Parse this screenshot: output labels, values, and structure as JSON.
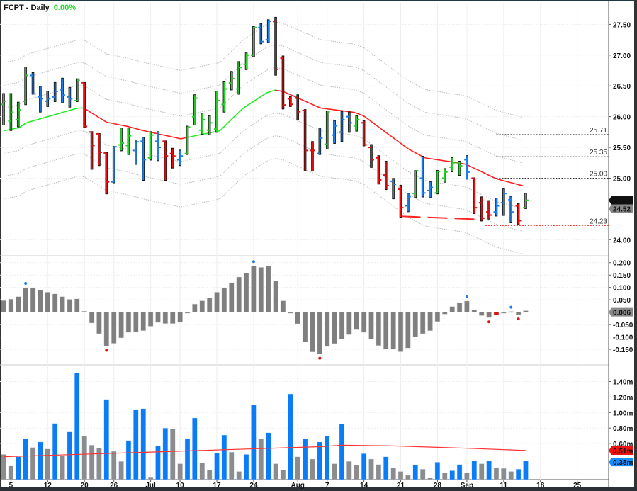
{
  "header": {
    "symbol_label": "FCPT - Daily",
    "change": "0.00%"
  },
  "colors": {
    "up": "#2ccc2c",
    "neutral": "#1f7fe6",
    "down": "#dd1111",
    "ma_up": "#22ee22",
    "ma_down": "#ff2222",
    "band": "#bbbbbb",
    "histogram": "#7f7f7f",
    "volume_up": "#0a7cf5",
    "volume_down": "#8c8c8c",
    "volume_ma": "#ff3333"
  },
  "price_panel": {
    "ylim": [
      23.75,
      27.85
    ],
    "ticks": [
      "27.50",
      "27.00",
      "26.50",
      "26.00",
      "25.50",
      "25.00",
      "24.00"
    ],
    "last_price_label": "24.64",
    "prev_price_label": "24.52",
    "levels": [
      {
        "value": 25.71,
        "label": "25.71",
        "color": "#333333",
        "from_bar": 67
      },
      {
        "value": 25.35,
        "label": "25.35",
        "color": "#333333",
        "from_bar": 67
      },
      {
        "value": 25.0,
        "label": "25.00",
        "color": "#333333",
        "from_bar": 67
      },
      {
        "value": 24.23,
        "label": "24.23",
        "color": "#ff2222",
        "from_bar": 65.5
      }
    ],
    "support_line": {
      "from": [
        54,
        24.38
      ],
      "to": [
        64.7,
        24.33
      ],
      "color": "#ff2222"
    },
    "band_offsets": [
      0.37,
      0.74,
      1.11
    ],
    "bars_fields": [
      "open",
      "high",
      "low",
      "close",
      "impulse"
    ],
    "bars": [
      [
        26.2,
        26.37,
        25.87,
        26.25,
        "G"
      ],
      [
        25.93,
        26.37,
        25.78,
        26.07,
        "G"
      ],
      [
        25.95,
        26.23,
        25.84,
        26.11,
        "G"
      ],
      [
        26.25,
        26.8,
        26.2,
        26.67,
        "G"
      ],
      [
        26.67,
        26.71,
        26.37,
        26.37,
        "B"
      ],
      [
        26.32,
        26.49,
        26.08,
        26.29,
        "B"
      ],
      [
        26.25,
        26.41,
        26.17,
        26.29,
        "B"
      ],
      [
        26.32,
        26.55,
        26.25,
        26.41,
        "B"
      ],
      [
        26.44,
        26.62,
        26.23,
        26.35,
        "B"
      ],
      [
        26.32,
        26.47,
        26.16,
        26.29,
        "B"
      ],
      [
        26.26,
        26.61,
        26.25,
        26.59,
        "G"
      ],
      [
        26.55,
        26.55,
        25.83,
        25.84,
        "R"
      ],
      [
        25.75,
        25.75,
        25.15,
        25.53,
        "R"
      ],
      [
        25.72,
        25.72,
        25.21,
        25.42,
        "R"
      ],
      [
        25.41,
        25.41,
        24.75,
        24.94,
        "R"
      ],
      [
        24.94,
        25.51,
        24.93,
        25.51,
        "B"
      ],
      [
        25.54,
        25.81,
        25.45,
        25.57,
        "G"
      ],
      [
        25.53,
        25.81,
        25.39,
        25.69,
        "G"
      ],
      [
        25.45,
        25.6,
        25.23,
        25.59,
        "B"
      ],
      [
        25.6,
        25.66,
        24.97,
        25.3,
        "B"
      ],
      [
        25.33,
        25.75,
        25.3,
        25.7,
        "G"
      ],
      [
        25.6,
        25.75,
        25.29,
        25.5,
        "B"
      ],
      [
        25.6,
        25.6,
        24.97,
        25.36,
        "R"
      ],
      [
        25.4,
        25.48,
        25.17,
        25.36,
        "R"
      ],
      [
        25.3,
        25.45,
        25.21,
        25.36,
        "B"
      ],
      [
        25.4,
        25.84,
        25.39,
        25.83,
        "G"
      ],
      [
        26.0,
        26.35,
        25.87,
        26.3,
        "G"
      ],
      [
        25.78,
        26.05,
        25.72,
        25.95,
        "G"
      ],
      [
        25.78,
        26.01,
        25.71,
        25.9,
        "G"
      ],
      [
        25.8,
        26.41,
        25.75,
        26.26,
        "G"
      ],
      [
        26.2,
        26.56,
        26.08,
        26.45,
        "G"
      ],
      [
        26.55,
        26.73,
        26.44,
        26.62,
        "G"
      ],
      [
        26.45,
        26.89,
        26.37,
        26.8,
        "G"
      ],
      [
        26.85,
        27.03,
        26.77,
        27.0,
        "G"
      ],
      [
        27.0,
        27.46,
        26.98,
        27.45,
        "G"
      ],
      [
        27.45,
        27.51,
        27.19,
        27.22,
        "B"
      ],
      [
        27.25,
        27.57,
        27.21,
        27.55,
        "B"
      ],
      [
        27.55,
        27.61,
        26.68,
        26.77,
        "R"
      ],
      [
        26.95,
        26.98,
        26.13,
        26.19,
        "R"
      ],
      [
        26.29,
        26.32,
        26.17,
        26.2,
        "R"
      ],
      [
        26.3,
        26.35,
        25.95,
        26.08,
        "R"
      ],
      [
        26.1,
        26.11,
        25.12,
        25.45,
        "R"
      ],
      [
        25.45,
        25.59,
        25.12,
        25.45,
        "R"
      ],
      [
        25.4,
        25.81,
        25.39,
        25.65,
        "B"
      ],
      [
        25.55,
        26.08,
        25.48,
        26.08,
        "G"
      ],
      [
        25.7,
        25.93,
        25.57,
        25.85,
        "B"
      ],
      [
        25.75,
        26.08,
        25.6,
        25.95,
        "B"
      ],
      [
        26.0,
        26.07,
        25.75,
        25.9,
        "B"
      ],
      [
        25.85,
        26.01,
        25.77,
        25.95,
        "G"
      ],
      [
        25.9,
        25.93,
        25.53,
        25.54,
        "R"
      ],
      [
        25.5,
        25.54,
        25.18,
        25.3,
        "R"
      ],
      [
        25.33,
        25.36,
        24.91,
        24.97,
        "R"
      ],
      [
        25.05,
        25.27,
        24.82,
        24.88,
        "R"
      ],
      [
        24.95,
        24.99,
        24.67,
        24.9,
        "B"
      ],
      [
        24.82,
        24.88,
        24.37,
        24.52,
        "R"
      ],
      [
        24.55,
        24.75,
        24.46,
        24.7,
        "B"
      ],
      [
        24.75,
        25.12,
        24.69,
        25.12,
        "G"
      ],
      [
        25.0,
        25.35,
        24.7,
        24.76,
        "B"
      ],
      [
        24.8,
        24.94,
        24.69,
        24.85,
        "B"
      ],
      [
        24.76,
        25.12,
        24.75,
        25.11,
        "G"
      ],
      [
        25.0,
        25.15,
        24.94,
        25.1,
        "G"
      ],
      [
        25.18,
        25.33,
        25.11,
        25.25,
        "G"
      ],
      [
        25.25,
        25.27,
        25.05,
        25.2,
        "G"
      ],
      [
        25.3,
        25.36,
        24.99,
        25.1,
        "B"
      ],
      [
        25.0,
        25.0,
        24.43,
        24.52,
        "R"
      ],
      [
        24.6,
        24.69,
        24.31,
        24.35,
        "R"
      ],
      [
        24.45,
        24.63,
        24.34,
        24.4,
        "R"
      ],
      [
        24.45,
        24.67,
        24.39,
        24.55,
        "B"
      ],
      [
        24.6,
        24.82,
        24.4,
        24.75,
        "B"
      ],
      [
        24.65,
        24.7,
        24.28,
        24.45,
        "B"
      ],
      [
        24.55,
        24.58,
        24.25,
        24.31,
        "R"
      ],
      [
        24.52,
        24.75,
        24.51,
        24.64,
        "G"
      ]
    ],
    "moving_average": [
      [
        0,
        25.77
      ],
      [
        2.1,
        25.82
      ],
      [
        3.1,
        25.9
      ],
      [
        10.1,
        26.14
      ],
      [
        10.9,
        26.14
      ],
      [
        14,
        25.91
      ],
      [
        16.9,
        25.84
      ],
      [
        19.1,
        25.77
      ],
      [
        24.1,
        25.64
      ],
      [
        26.5,
        25.7
      ],
      [
        29.4,
        25.77
      ],
      [
        32.6,
        26.14
      ],
      [
        35.8,
        26.39
      ],
      [
        36.9,
        26.43
      ],
      [
        38,
        26.41
      ],
      [
        43.1,
        26.14
      ],
      [
        47.7,
        26.07
      ],
      [
        49,
        26.01
      ],
      [
        50.9,
        25.84
      ],
      [
        55.1,
        25.47
      ],
      [
        57.3,
        25.33
      ],
      [
        62.8,
        25.23
      ],
      [
        67,
        24.99
      ],
      [
        70.8,
        24.87
      ]
    ],
    "ma_color_segments": [
      {
        "from": 0,
        "to": 11,
        "trend": "up"
      },
      {
        "from": 11,
        "to": 24.9,
        "trend": "down"
      },
      {
        "from": 24.9,
        "to": 36.9,
        "trend": "up"
      },
      {
        "from": 36.9,
        "to": 70.8,
        "trend": "down"
      }
    ]
  },
  "macd_panel": {
    "ylim": [
      -0.21,
      0.225
    ],
    "ticks": [
      "0.200",
      "0.150",
      "0.100",
      "0.050",
      "-0.050",
      "-0.100",
      "-0.150"
    ],
    "last_value_label": "0.006",
    "histogram": [
      0.047,
      0.053,
      0.063,
      0.099,
      0.097,
      0.09,
      0.081,
      0.074,
      0.063,
      0.052,
      0.054,
      0.004,
      -0.044,
      -0.087,
      -0.137,
      -0.126,
      -0.104,
      -0.082,
      -0.079,
      -0.075,
      -0.057,
      -0.042,
      -0.046,
      -0.046,
      -0.041,
      -0.003,
      0.033,
      0.046,
      0.058,
      0.081,
      0.099,
      0.119,
      0.142,
      0.158,
      0.187,
      0.181,
      0.186,
      0.127,
      0.046,
      -0.003,
      -0.047,
      -0.12,
      -0.161,
      -0.169,
      -0.139,
      -0.127,
      -0.108,
      -0.091,
      -0.071,
      -0.082,
      -0.108,
      -0.135,
      -0.15,
      -0.15,
      -0.16,
      -0.145,
      -0.099,
      -0.087,
      -0.075,
      -0.038,
      -0.008,
      0.023,
      0.038,
      0.045,
      0.01,
      -0.014,
      -0.022,
      -0.011,
      -0.003,
      0.003,
      -0.01,
      0.006
    ],
    "highlight_bars": [
      67
    ],
    "peak_dots": [
      {
        "bar": 3,
        "type": "high"
      },
      {
        "bar": 14,
        "type": "low"
      },
      {
        "bar": 34,
        "type": "high"
      },
      {
        "bar": 43,
        "type": "low"
      },
      {
        "bar": 63,
        "type": "high"
      },
      {
        "bar": 66,
        "type": "low"
      },
      {
        "bar": 69,
        "type": "high"
      },
      {
        "bar": 70,
        "type": "low"
      }
    ]
  },
  "volume_panel": {
    "ylim": [
      0.135,
      1.56
    ],
    "ticks": [
      "1.40m",
      "1.20m",
      "1.00m",
      "0.80m",
      "0.60m"
    ],
    "ma_label": "0.51m",
    "last_label": "0.38m",
    "volume_millions": [
      0.46,
      0.31,
      0.43,
      0.66,
      0.55,
      0.62,
      0.53,
      0.86,
      0.44,
      0.75,
      1.51,
      0.7,
      0.58,
      0.54,
      1.17,
      0.5,
      0.37,
      0.64,
      1.04,
      1.05,
      0.17,
      0.57,
      0.8,
      0.79,
      0.34,
      0.66,
      0.93,
      0.35,
      0.26,
      0.48,
      0.71,
      0.49,
      0.24,
      0.46,
      1.1,
      0.66,
      0.74,
      0.34,
      0.26,
      1.24,
      0.43,
      0.66,
      0.4,
      0.62,
      0.7,
      0.34,
      0.85,
      0.37,
      0.32,
      0.47,
      0.4,
      0.33,
      0.43,
      0.29,
      0.24,
      0.19,
      0.32,
      0.27,
      0.16,
      0.36,
      0.22,
      0.25,
      0.33,
      0.22,
      0.38,
      0.34,
      0.38,
      0.29,
      0.28,
      0.24,
      0.27,
      0.38
    ],
    "volume_up": [
      0,
      0,
      1,
      1,
      0,
      1,
      0,
      1,
      0,
      1,
      1,
      0,
      0,
      0,
      1,
      0,
      0,
      1,
      1,
      1,
      0,
      1,
      1,
      0,
      0,
      1,
      1,
      0,
      0,
      1,
      1,
      0,
      0,
      1,
      1,
      0,
      1,
      0,
      0,
      1,
      0,
      1,
      0,
      1,
      1,
      0,
      1,
      0,
      0,
      1,
      0,
      0,
      1,
      0,
      0,
      0,
      1,
      0,
      0,
      1,
      0,
      1,
      1,
      0,
      1,
      0,
      1,
      0,
      0,
      0,
      1,
      1
    ],
    "moving_average": [
      [
        0,
        0.43
      ],
      [
        20,
        0.49
      ],
      [
        43,
        0.56
      ],
      [
        46,
        0.58
      ],
      [
        53,
        0.57
      ],
      [
        63,
        0.54
      ],
      [
        71,
        0.51
      ]
    ]
  },
  "x_axis": {
    "ticks": [
      {
        "label": "5",
        "bar": 1
      },
      {
        "label": "12",
        "bar": 6
      },
      {
        "label": "20",
        "bar": 11
      },
      {
        "label": "26",
        "bar": 15
      },
      {
        "label": "Jul",
        "bar": 20
      },
      {
        "label": "10",
        "bar": 24
      },
      {
        "label": "17",
        "bar": 29
      },
      {
        "label": "24",
        "bar": 34
      },
      {
        "label": "Aug",
        "bar": 40
      },
      {
        "label": "7",
        "bar": 44
      },
      {
        "label": "14",
        "bar": 49
      },
      {
        "label": "21",
        "bar": 54
      },
      {
        "label": "28",
        "bar": 59
      },
      {
        "label": "Sep",
        "bar": 63
      },
      {
        "label": "11",
        "bar": 68
      },
      {
        "label": "18",
        "bar": 73
      },
      {
        "label": "25",
        "bar": 78
      }
    ]
  }
}
